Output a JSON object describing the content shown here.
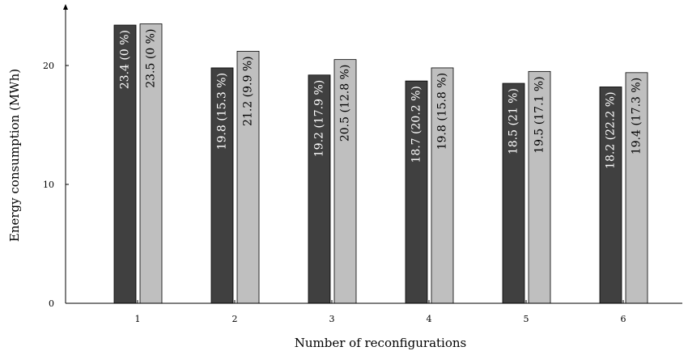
{
  "chart_data": {
    "type": "bar",
    "title": "",
    "xlabel": "Number of reconfigurations",
    "ylabel": "Energy consumption (MWh)",
    "categories": [
      "1",
      "2",
      "3",
      "4",
      "5",
      "6"
    ],
    "ylim": [
      0,
      25
    ],
    "yticks": [
      "0",
      "10",
      "20"
    ],
    "grid": false,
    "series": [
      {
        "color": "#404040",
        "text_color": "#ffffff",
        "values": [
          23.4,
          19.8,
          19.2,
          18.7,
          18.5,
          18.2
        ],
        "labels": [
          "23.4 (0 %)",
          "19.8 (15.3 %)",
          "19.2 (17.9 %)",
          "18.7 (20.2 %)",
          "18.5 (21 %)",
          "18.2 (22.2 %)"
        ]
      },
      {
        "color": "#bfbfbf",
        "text_color": "#000000",
        "values": [
          23.5,
          21.2,
          20.5,
          19.8,
          19.5,
          19.4
        ],
        "labels": [
          "23.5 (0 %)",
          "21.2 (9.9 %)",
          "20.5 (12.8 %)",
          "19.8 (15.8 %)",
          "19.5 (17.1 %)",
          "19.4 (17.3 %)"
        ]
      }
    ]
  }
}
